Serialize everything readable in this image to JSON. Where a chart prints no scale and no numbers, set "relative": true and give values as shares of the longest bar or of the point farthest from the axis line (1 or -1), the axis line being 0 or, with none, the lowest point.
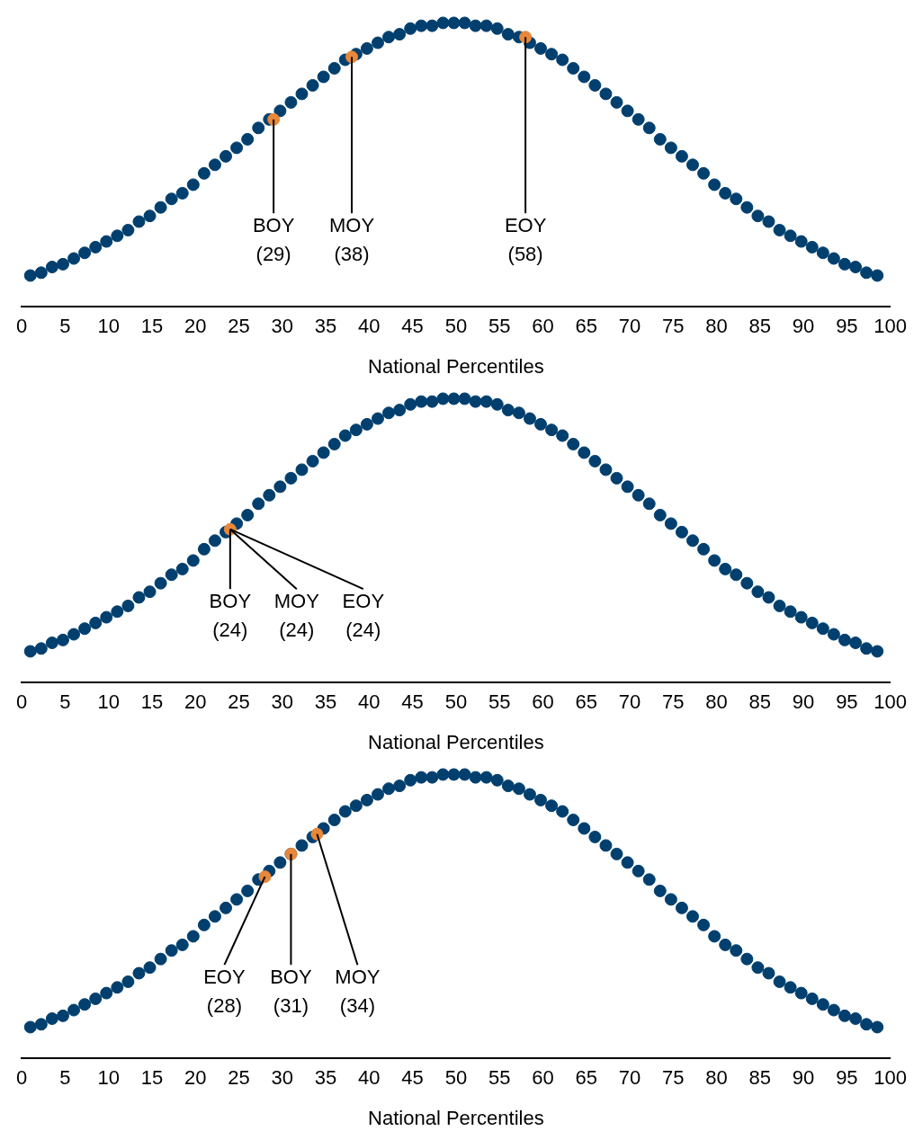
{
  "chart_data": [
    {
      "type": "scatter",
      "xlabel": "National Percentiles",
      "relative": true,
      "xlim": [
        0,
        100
      ],
      "xticks": [
        0,
        5,
        10,
        15,
        20,
        25,
        30,
        35,
        40,
        45,
        50,
        55,
        60,
        65,
        70,
        75,
        80,
        85,
        90,
        95,
        100
      ],
      "grid": false,
      "tick_labels": "x",
      "marker": "circle",
      "series": [
        {
          "color": "#003f6e",
          "x": [
            1,
            2.25,
            3.5,
            4.75,
            6,
            7.25,
            8.5,
            9.75,
            11,
            12.25,
            13.5,
            14.75,
            16,
            17.25,
            18.5,
            19.75,
            21,
            22.25,
            23.5,
            24.75,
            26,
            27.25,
            28.5,
            29.75,
            31,
            32.25,
            33.5,
            34.75,
            36,
            37.25,
            38.5,
            39.75,
            41,
            42.25,
            43.5,
            44.75,
            46,
            47.25,
            48.5,
            49.75,
            51,
            52.25,
            53.5,
            54.75,
            56,
            57.25,
            58.5,
            59.75,
            61,
            62.25,
            63.5,
            64.75,
            66,
            67.25,
            68.5,
            69.75,
            71,
            72.25,
            73.5,
            74.75,
            76,
            77.25,
            78.5,
            79.75,
            81,
            82.25,
            83.5,
            84.75,
            86,
            87.25,
            88.5,
            89.75,
            91,
            92.25,
            93.5,
            94.75,
            96,
            97.25,
            98.5
          ],
          "values": [
            0.11,
            0.12,
            0.14,
            0.15,
            0.17,
            0.19,
            0.21,
            0.23,
            0.25,
            0.27,
            0.3,
            0.32,
            0.35,
            0.38,
            0.4,
            0.43,
            0.47,
            0.5,
            0.53,
            0.56,
            0.59,
            0.63,
            0.66,
            0.69,
            0.72,
            0.75,
            0.78,
            0.81,
            0.84,
            0.87,
            0.89,
            0.91,
            0.93,
            0.95,
            0.96,
            0.98,
            0.99,
            0.99,
            1,
            1,
            1,
            0.99,
            0.99,
            0.98,
            0.96,
            0.95,
            0.93,
            0.91,
            0.89,
            0.87,
            0.84,
            0.81,
            0.78,
            0.75,
            0.72,
            0.69,
            0.66,
            0.63,
            0.59,
            0.56,
            0.53,
            0.5,
            0.47,
            0.43,
            0.4,
            0.38,
            0.35,
            0.32,
            0.3,
            0.27,
            0.25,
            0.23,
            0.21,
            0.19,
            0.17,
            0.15,
            0.14,
            0.12,
            0.11
          ]
        },
        {
          "color": "#e8883a",
          "x": [
            29,
            38,
            58
          ],
          "values": [
            0.66,
            0.88,
            0.95
          ]
        }
      ],
      "annotations": [
        {
          "text": "BOY\n(29)",
          "x": 29,
          "y": 0.66
        },
        {
          "text": "MOY\n(38)",
          "x": 38,
          "y": 0.88
        },
        {
          "text": "EOY\n(58)",
          "x": 58,
          "y": 0.95
        }
      ]
    },
    {
      "type": "scatter",
      "xlabel": "National Percentiles",
      "relative": true,
      "xlim": [
        0,
        100
      ],
      "xticks": [
        0,
        5,
        10,
        15,
        20,
        25,
        30,
        35,
        40,
        45,
        50,
        55,
        60,
        65,
        70,
        75,
        80,
        85,
        90,
        95,
        100
      ],
      "grid": false,
      "tick_labels": "x",
      "marker": "circle",
      "series": [
        {
          "color": "#003f6e",
          "x": [
            1,
            2.25,
            3.5,
            4.75,
            6,
            7.25,
            8.5,
            9.75,
            11,
            12.25,
            13.5,
            14.75,
            16,
            17.25,
            18.5,
            19.75,
            21,
            22.25,
            23.5,
            24.75,
            26,
            27.25,
            28.5,
            29.75,
            31,
            32.25,
            33.5,
            34.75,
            36,
            37.25,
            38.5,
            39.75,
            41,
            42.25,
            43.5,
            44.75,
            46,
            47.25,
            48.5,
            49.75,
            51,
            52.25,
            53.5,
            54.75,
            56,
            57.25,
            58.5,
            59.75,
            61,
            62.25,
            63.5,
            64.75,
            66,
            67.25,
            68.5,
            69.75,
            71,
            72.25,
            73.5,
            74.75,
            76,
            77.25,
            78.5,
            79.75,
            81,
            82.25,
            83.5,
            84.75,
            86,
            87.25,
            88.5,
            89.75,
            91,
            92.25,
            93.5,
            94.75,
            96,
            97.25,
            98.5
          ],
          "values": [
            0.11,
            0.12,
            0.14,
            0.15,
            0.17,
            0.19,
            0.21,
            0.23,
            0.25,
            0.27,
            0.3,
            0.32,
            0.35,
            0.38,
            0.4,
            0.43,
            0.47,
            0.5,
            0.53,
            0.56,
            0.59,
            0.63,
            0.66,
            0.69,
            0.72,
            0.75,
            0.78,
            0.81,
            0.84,
            0.87,
            0.89,
            0.91,
            0.93,
            0.95,
            0.96,
            0.98,
            0.99,
            0.99,
            1,
            1,
            1,
            0.99,
            0.99,
            0.98,
            0.96,
            0.95,
            0.93,
            0.91,
            0.89,
            0.87,
            0.84,
            0.81,
            0.78,
            0.75,
            0.72,
            0.69,
            0.66,
            0.63,
            0.59,
            0.56,
            0.53,
            0.5,
            0.47,
            0.43,
            0.4,
            0.38,
            0.35,
            0.32,
            0.3,
            0.27,
            0.25,
            0.23,
            0.21,
            0.19,
            0.17,
            0.15,
            0.14,
            0.12,
            0.11
          ]
        },
        {
          "color": "#e8883a",
          "x": [
            24
          ],
          "values": [
            0.54
          ]
        }
      ],
      "annotations": [
        {
          "text": "BOY\n(24)",
          "x": 24,
          "y": 0.54
        },
        {
          "text": "MOY\n(24)",
          "x": 24,
          "y": 0.54
        },
        {
          "text": "EOY\n(24)",
          "x": 24,
          "y": 0.54
        }
      ]
    },
    {
      "type": "scatter",
      "xlabel": "National Percentiles",
      "relative": true,
      "xlim": [
        0,
        100
      ],
      "xticks": [
        0,
        5,
        10,
        15,
        20,
        25,
        30,
        35,
        40,
        45,
        50,
        55,
        60,
        65,
        70,
        75,
        80,
        85,
        90,
        95,
        100
      ],
      "grid": false,
      "tick_labels": "x",
      "marker": "circle",
      "series": [
        {
          "color": "#003f6e",
          "x": [
            1,
            2.25,
            3.5,
            4.75,
            6,
            7.25,
            8.5,
            9.75,
            11,
            12.25,
            13.5,
            14.75,
            16,
            17.25,
            18.5,
            19.75,
            21,
            22.25,
            23.5,
            24.75,
            26,
            27.25,
            28.5,
            29.75,
            31,
            32.25,
            33.5,
            34.75,
            36,
            37.25,
            38.5,
            39.75,
            41,
            42.25,
            43.5,
            44.75,
            46,
            47.25,
            48.5,
            49.75,
            51,
            52.25,
            53.5,
            54.75,
            56,
            57.25,
            58.5,
            59.75,
            61,
            62.25,
            63.5,
            64.75,
            66,
            67.25,
            68.5,
            69.75,
            71,
            72.25,
            73.5,
            74.75,
            76,
            77.25,
            78.5,
            79.75,
            81,
            82.25,
            83.5,
            84.75,
            86,
            87.25,
            88.5,
            89.75,
            91,
            92.25,
            93.5,
            94.75,
            96,
            97.25,
            98.5
          ],
          "values": [
            0.11,
            0.12,
            0.14,
            0.15,
            0.17,
            0.19,
            0.21,
            0.23,
            0.25,
            0.27,
            0.3,
            0.32,
            0.35,
            0.38,
            0.4,
            0.43,
            0.47,
            0.5,
            0.53,
            0.56,
            0.59,
            0.63,
            0.66,
            0.69,
            0.72,
            0.75,
            0.78,
            0.81,
            0.84,
            0.87,
            0.89,
            0.91,
            0.93,
            0.95,
            0.96,
            0.98,
            0.99,
            0.99,
            1,
            1,
            1,
            0.99,
            0.99,
            0.98,
            0.96,
            0.95,
            0.93,
            0.91,
            0.89,
            0.87,
            0.84,
            0.81,
            0.78,
            0.75,
            0.72,
            0.69,
            0.66,
            0.63,
            0.59,
            0.56,
            0.53,
            0.5,
            0.47,
            0.43,
            0.4,
            0.38,
            0.35,
            0.32,
            0.3,
            0.27,
            0.25,
            0.23,
            0.21,
            0.19,
            0.17,
            0.15,
            0.14,
            0.12,
            0.11
          ]
        },
        {
          "color": "#e8883a",
          "x": [
            28,
            31,
            34
          ],
          "values": [
            0.64,
            0.72,
            0.79
          ]
        }
      ],
      "annotations": [
        {
          "text": "EOY\n(28)",
          "x": 28,
          "y": 0.64
        },
        {
          "text": "BOY\n(31)",
          "x": 31,
          "y": 0.72
        },
        {
          "text": "MOY\n(34)",
          "x": 34,
          "y": 0.79
        }
      ]
    }
  ]
}
